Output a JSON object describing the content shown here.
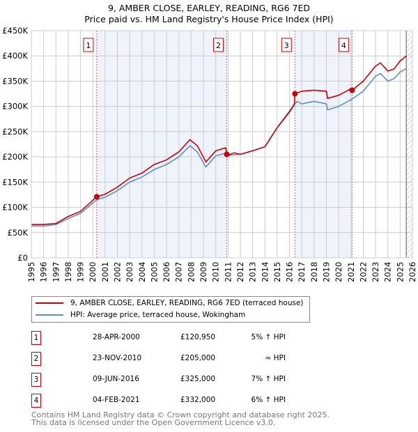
{
  "title": "9, AMBER CLOSE, EARLEY, READING, RG6 7ED",
  "subtitle": "Price paid vs. HM Land Registry's House Price Index (HPI)",
  "chart_data": {
    "type": "line",
    "xlim": [
      1995,
      2026
    ],
    "ylim": [
      0,
      450000
    ],
    "x_ticks": [
      "1995",
      "1996",
      "1997",
      "1998",
      "1999",
      "2000",
      "2001",
      "2002",
      "2003",
      "2004",
      "2005",
      "2006",
      "2007",
      "2008",
      "2009",
      "2010",
      "2011",
      "2012",
      "2013",
      "2014",
      "2015",
      "2016",
      "2017",
      "2018",
      "2019",
      "2020",
      "2021",
      "2022",
      "2023",
      "2024",
      "2025",
      "2026"
    ],
    "y_ticks": [
      "£0",
      "£50K",
      "£100K",
      "£150K",
      "£200K",
      "£250K",
      "£300K",
      "£350K",
      "£400K",
      "£450K"
    ],
    "series": [
      {
        "name": "9, AMBER CLOSE, EARLEY, READING, RG6 7ED (terraced house)",
        "color": "#cc0000",
        "x": [
          1995,
          1996,
          1997,
          1998,
          1999,
          2000.32,
          2001,
          2002,
          2003,
          2004,
          2005,
          2006,
          2007,
          2007.9,
          2008.5,
          2009.2,
          2010,
          2010.8,
          2010.9,
          2011,
          2011.5,
          2012,
          2013,
          2014,
          2015,
          2016,
          2016.4,
          2016.44,
          2017,
          2018,
          2019,
          2019.1,
          2020,
          2021,
          2021.1,
          2022,
          2023,
          2023.4,
          2024,
          2024.5,
          2025,
          2025.5
        ],
        "y": [
          66000,
          66000,
          68000,
          82000,
          92000,
          120950,
          126000,
          140000,
          158000,
          168000,
          185000,
          194000,
          210000,
          234000,
          222000,
          190000,
          212000,
          218000,
          205000,
          203000,
          208000,
          205000,
          212000,
          220000,
          258000,
          290000,
          305000,
          325000,
          330000,
          332000,
          330000,
          316000,
          322000,
          335000,
          332000,
          350000,
          380000,
          386000,
          370000,
          374000,
          390000,
          400000
        ]
      },
      {
        "name": "HPI: Average price, terraced house, Wokingham",
        "color": "#5b8fd0",
        "x": [
          1995,
          1996,
          1997,
          1998,
          1999,
          2000.32,
          2001,
          2002,
          2003,
          2004,
          2005,
          2006,
          2007,
          2007.9,
          2008.5,
          2009.2,
          2010,
          2010.9,
          2011,
          2012,
          2013,
          2014,
          2015,
          2016,
          2016.4,
          2016.6,
          2017,
          2018,
          2019,
          2019.1,
          2020,
          2021,
          2022,
          2023,
          2023.4,
          2024,
          2024.5,
          2025,
          2025.5
        ],
        "y": [
          63000,
          63000,
          66000,
          78000,
          88000,
          115000,
          120000,
          133000,
          150000,
          160000,
          175000,
          185000,
          200000,
          222000,
          210000,
          180000,
          202000,
          208000,
          203000,
          205000,
          212000,
          220000,
          258000,
          288000,
          303000,
          310000,
          305000,
          310000,
          305000,
          293000,
          300000,
          313000,
          330000,
          360000,
          365000,
          350000,
          355000,
          368000,
          375000
        ]
      }
    ],
    "sales": [
      {
        "label": "1",
        "x": 2000.32,
        "y": 120950
      },
      {
        "label": "2",
        "x": 2010.9,
        "y": 205000
      },
      {
        "label": "3",
        "x": 2016.44,
        "y": 325000
      },
      {
        "label": "4",
        "x": 2021.09,
        "y": 332000
      }
    ],
    "shaded": [
      [
        2000.32,
        2010.9
      ],
      [
        2016.44,
        2021.09
      ]
    ],
    "forecast_from": 2025.5
  },
  "legend": [
    "9, AMBER CLOSE, EARLEY, READING, RG6 7ED (terraced house)",
    "HPI: Average price, terraced house, Wokingham"
  ],
  "table": [
    {
      "n": "1",
      "date": "28-APR-2000",
      "price": "£120,950",
      "hpi": "5% ↑ HPI"
    },
    {
      "n": "2",
      "date": "23-NOV-2010",
      "price": "£205,000",
      "hpi": "≈ HPI"
    },
    {
      "n": "3",
      "date": "09-JUN-2016",
      "price": "£325,000",
      "hpi": "7% ↑ HPI"
    },
    {
      "n": "4",
      "date": "04-FEB-2021",
      "price": "£332,000",
      "hpi": "6% ↑ HPI"
    }
  ],
  "footer": [
    "Contains HM Land Registry data © Crown copyright and database right 2025.",
    "This data is licensed under the Open Government Licence v3.0."
  ]
}
